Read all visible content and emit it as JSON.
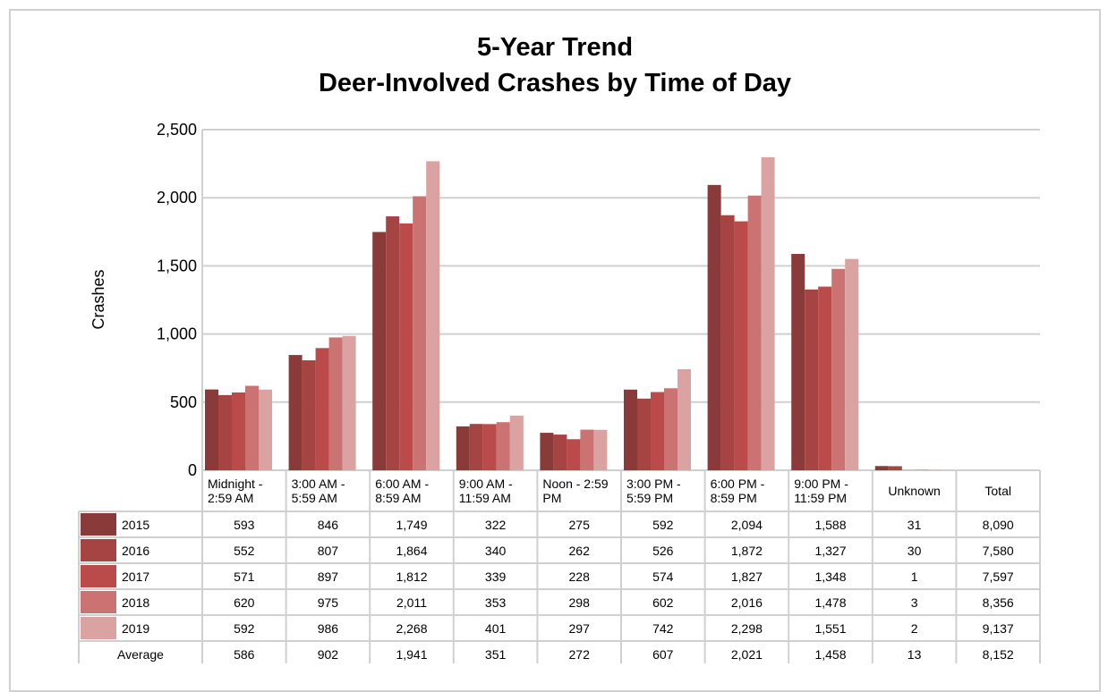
{
  "chart_data": {
    "type": "bar",
    "title": "5-Year Trend",
    "subtitle": "Deer-Involved Crashes by Time of Day",
    "y_label": "Crashes",
    "categories": [
      "Midnight - 2:59 AM",
      "3:00 AM - 5:59 AM",
      "6:00 AM - 8:59 AM",
      "9:00 AM - 11:59 AM",
      "Noon - 2:59 PM",
      "3:00 PM - 5:59 PM",
      "6:00 PM - 8:59 PM",
      "9:00 PM - 11:59 PM",
      "Unknown"
    ],
    "series": [
      {
        "name": "2015",
        "color": "#8b3a3a",
        "values": [
          593,
          846,
          1749,
          322,
          275,
          592,
          2094,
          1588,
          31
        ],
        "value_labels": [
          "593",
          "846",
          "1,749",
          "322",
          "275",
          "592",
          "2,094",
          "1,588",
          "31"
        ]
      },
      {
        "name": "2016",
        "color": "#a64444",
        "values": [
          552,
          807,
          1864,
          340,
          262,
          526,
          1872,
          1327,
          30
        ],
        "value_labels": [
          "552",
          "807",
          "1,864",
          "340",
          "262",
          "526",
          "1,872",
          "1,327",
          "30"
        ]
      },
      {
        "name": "2017",
        "color": "#bb4b4b",
        "values": [
          571,
          897,
          1812,
          339,
          228,
          574,
          1827,
          1348,
          1
        ],
        "value_labels": [
          "571",
          "897",
          "1,812",
          "339",
          "228",
          "574",
          "1,827",
          "1,348",
          "1"
        ]
      },
      {
        "name": "2018",
        "color": "#cb7272",
        "values": [
          620,
          975,
          2011,
          353,
          298,
          602,
          2016,
          1478,
          3
        ],
        "value_labels": [
          "620",
          "975",
          "2,011",
          "353",
          "298",
          "602",
          "2,016",
          "1,478",
          "3"
        ]
      },
      {
        "name": "2019",
        "color": "#dba2a2",
        "values": [
          592,
          986,
          2268,
          401,
          297,
          742,
          2298,
          1551,
          2
        ],
        "value_labels": [
          "592",
          "986",
          "2,268",
          "401",
          "297",
          "742",
          "2,298",
          "1,551",
          "2"
        ]
      }
    ],
    "ylim": [
      0,
      2500
    ],
    "yticks": [
      0,
      500,
      {
        "value": 1000,
        "label": "1,000"
      },
      {
        "value": 1500,
        "label": "1,500"
      },
      {
        "value": 2000,
        "label": "2,000"
      },
      {
        "value": 2500,
        "label": "2,500"
      }
    ],
    "grid": true,
    "table": {
      "total_header": "Total",
      "totals": [
        "8,090",
        "7,580",
        "7,597",
        "8,356",
        "9,137"
      ],
      "average_label": "Average",
      "averages": [
        "586",
        "902",
        "1,941",
        "351",
        "272",
        "607",
        "2,021",
        "1,458",
        "13"
      ],
      "average_total": "8,152"
    }
  }
}
